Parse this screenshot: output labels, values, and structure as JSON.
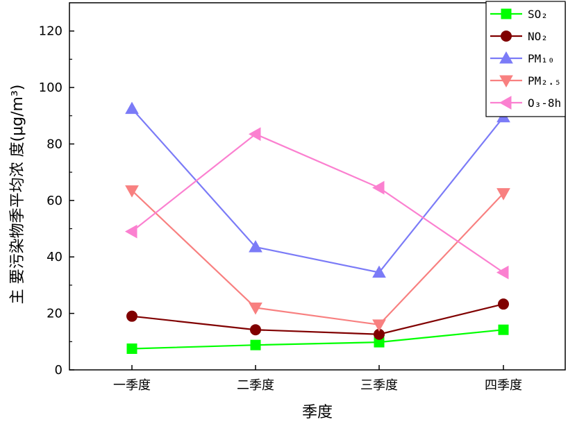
{
  "chart_data": {
    "type": "line",
    "categories": [
      "一季度",
      "二季度",
      "三季度",
      "四季度"
    ],
    "xlabel": "季度",
    "ylabel": "主 要污染物季平均浓 度(μg/m³)",
    "ylim": [
      0,
      130
    ],
    "yticks": [
      0,
      20,
      40,
      60,
      80,
      100,
      120
    ],
    "grid": false,
    "legend_position": "top-right",
    "series": [
      {
        "name": "SO₂",
        "color": "#00ff00",
        "marker": "square",
        "values": [
          7.5,
          8.8,
          9.8,
          14.2
        ]
      },
      {
        "name": "NO₂",
        "color": "#800000",
        "marker": "circle",
        "values": [
          19.0,
          14.2,
          12.6,
          23.3
        ]
      },
      {
        "name": "PM₁₀",
        "color": "#7b7bf7",
        "marker": "triangle-up",
        "values": [
          92.5,
          43.5,
          34.5,
          89.5
        ]
      },
      {
        "name": "PM₂.₅",
        "color": "#f88080",
        "marker": "triangle-down",
        "values": [
          63.5,
          22.0,
          16.0,
          62.5
        ]
      },
      {
        "name": "O₃-8h",
        "color": "#fb80d0",
        "marker": "triangle-left",
        "values": [
          49.0,
          83.5,
          64.5,
          34.5
        ]
      }
    ]
  }
}
